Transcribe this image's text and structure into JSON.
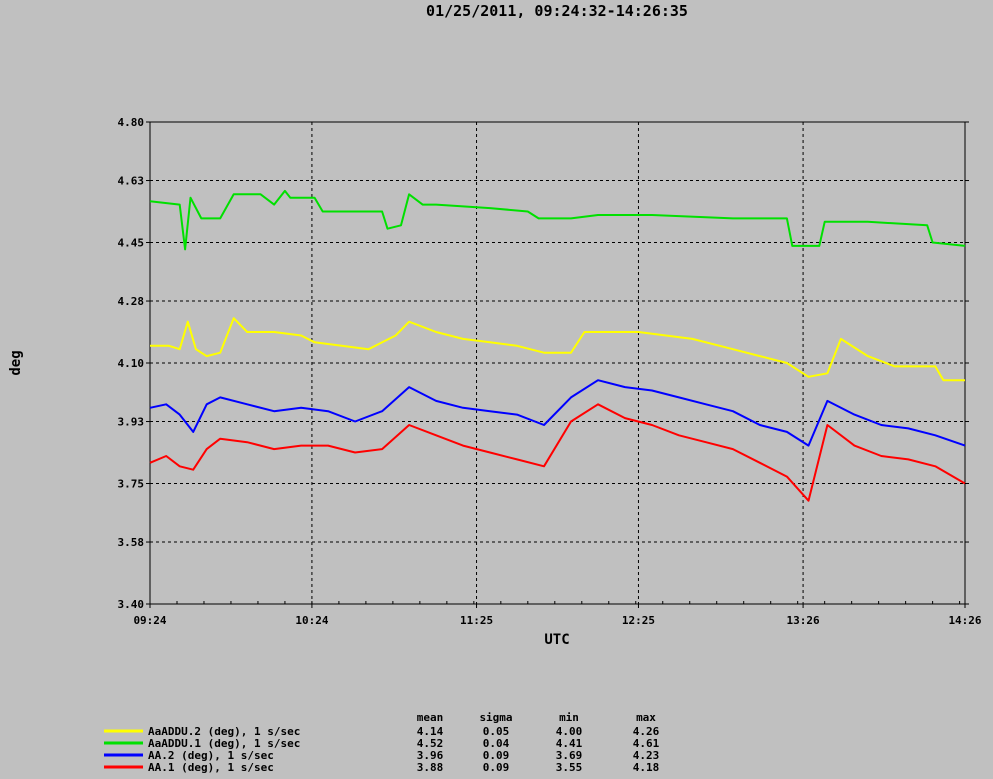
{
  "chart_data": {
    "type": "line",
    "title": "01/25/2011, 09:24:32-14:26:35",
    "xlabel": "UTC",
    "ylabel": "deg",
    "ylim": [
      3.4,
      4.8
    ],
    "yticks": [
      "3.40",
      "3.58",
      "3.75",
      "3.93",
      "4.10",
      "4.28",
      "4.45",
      "4.63",
      "4.80"
    ],
    "xlim": [
      "09:24",
      "14:26"
    ],
    "xticks": [
      "09:24",
      "10:24",
      "11:25",
      "12:25",
      "13:26",
      "14:26"
    ],
    "grid": true,
    "stats_headers": [
      "mean",
      "sigma",
      "min",
      "max"
    ],
    "series": [
      {
        "name": "AaADDU.2 (deg), 1 s/sec",
        "color": "#ffff00",
        "stats": [
          "4.14",
          "0.05",
          "4.00",
          "4.26"
        ],
        "points": [
          [
            "09:24",
            4.15
          ],
          [
            "09:31",
            4.15
          ],
          [
            "09:35",
            4.14
          ],
          [
            "09:38",
            4.22
          ],
          [
            "09:41",
            4.14
          ],
          [
            "09:45",
            4.12
          ],
          [
            "09:50",
            4.13
          ],
          [
            "09:55",
            4.23
          ],
          [
            "10:00",
            4.19
          ],
          [
            "10:10",
            4.19
          ],
          [
            "10:20",
            4.18
          ],
          [
            "10:25",
            4.16
          ],
          [
            "10:35",
            4.15
          ],
          [
            "10:45",
            4.14
          ],
          [
            "10:55",
            4.18
          ],
          [
            "11:00",
            4.22
          ],
          [
            "11:10",
            4.19
          ],
          [
            "11:20",
            4.17
          ],
          [
            "11:30",
            4.16
          ],
          [
            "11:40",
            4.15
          ],
          [
            "11:50",
            4.13
          ],
          [
            "12:00",
            4.13
          ],
          [
            "12:05",
            4.19
          ],
          [
            "12:25",
            4.19
          ],
          [
            "12:45",
            4.17
          ],
          [
            "13:00",
            4.14
          ],
          [
            "13:10",
            4.12
          ],
          [
            "13:20",
            4.1
          ],
          [
            "13:28",
            4.06
          ],
          [
            "13:35",
            4.07
          ],
          [
            "13:40",
            4.17
          ],
          [
            "13:50",
            4.12
          ],
          [
            "14:00",
            4.09
          ],
          [
            "14:15",
            4.09
          ],
          [
            "14:18",
            4.05
          ],
          [
            "14:26",
            4.05
          ]
        ]
      },
      {
        "name": "AaADDU.1 (deg), 1 s/sec",
        "color": "#00e000",
        "stats": [
          "4.52",
          "0.04",
          "4.41",
          "4.61"
        ],
        "points": [
          [
            "09:24",
            4.57
          ],
          [
            "09:35",
            4.56
          ],
          [
            "09:37",
            4.43
          ],
          [
            "09:39",
            4.58
          ],
          [
            "09:43",
            4.52
          ],
          [
            "09:50",
            4.52
          ],
          [
            "09:55",
            4.59
          ],
          [
            "10:05",
            4.59
          ],
          [
            "10:10",
            4.56
          ],
          [
            "10:14",
            4.6
          ],
          [
            "10:16",
            4.58
          ],
          [
            "10:25",
            4.58
          ],
          [
            "10:28",
            4.54
          ],
          [
            "10:50",
            4.54
          ],
          [
            "10:52",
            4.49
          ],
          [
            "10:57",
            4.5
          ],
          [
            "11:00",
            4.59
          ],
          [
            "11:05",
            4.56
          ],
          [
            "11:10",
            4.56
          ],
          [
            "11:30",
            4.55
          ],
          [
            "11:44",
            4.54
          ],
          [
            "11:48",
            4.52
          ],
          [
            "11:54",
            4.52
          ],
          [
            "12:00",
            4.52
          ],
          [
            "12:10",
            4.53
          ],
          [
            "12:30",
            4.53
          ],
          [
            "13:00",
            4.52
          ],
          [
            "13:20",
            4.52
          ],
          [
            "13:22",
            4.44
          ],
          [
            "13:32",
            4.44
          ],
          [
            "13:34",
            4.51
          ],
          [
            "13:50",
            4.51
          ],
          [
            "14:12",
            4.5
          ],
          [
            "14:14",
            4.45
          ],
          [
            "14:26",
            4.44
          ]
        ]
      },
      {
        "name": "AA.2 (deg), 1 s/sec",
        "color": "#0000ff",
        "stats": [
          "3.96",
          "0.09",
          "3.69",
          "4.23"
        ],
        "points": [
          [
            "09:24",
            3.97
          ],
          [
            "09:30",
            3.98
          ],
          [
            "09:35",
            3.95
          ],
          [
            "09:40",
            3.9
          ],
          [
            "09:45",
            3.98
          ],
          [
            "09:50",
            4.0
          ],
          [
            "10:00",
            3.98
          ],
          [
            "10:10",
            3.96
          ],
          [
            "10:20",
            3.97
          ],
          [
            "10:30",
            3.96
          ],
          [
            "10:40",
            3.93
          ],
          [
            "10:50",
            3.96
          ],
          [
            "11:00",
            4.03
          ],
          [
            "11:10",
            3.99
          ],
          [
            "11:20",
            3.97
          ],
          [
            "11:30",
            3.96
          ],
          [
            "11:40",
            3.95
          ],
          [
            "11:50",
            3.92
          ],
          [
            "12:00",
            4.0
          ],
          [
            "12:10",
            4.05
          ],
          [
            "12:20",
            4.03
          ],
          [
            "12:30",
            4.02
          ],
          [
            "12:40",
            4.0
          ],
          [
            "12:50",
            3.98
          ],
          [
            "13:00",
            3.96
          ],
          [
            "13:10",
            3.92
          ],
          [
            "13:20",
            3.9
          ],
          [
            "13:28",
            3.86
          ],
          [
            "13:35",
            3.99
          ],
          [
            "13:45",
            3.95
          ],
          [
            "13:55",
            3.92
          ],
          [
            "14:05",
            3.91
          ],
          [
            "14:15",
            3.89
          ],
          [
            "14:26",
            3.86
          ]
        ]
      },
      {
        "name": "AA.1 (deg), 1 s/sec",
        "color": "#ff0000",
        "stats": [
          "3.88",
          "0.09",
          "3.55",
          "4.18"
        ],
        "points": [
          [
            "09:24",
            3.81
          ],
          [
            "09:30",
            3.83
          ],
          [
            "09:35",
            3.8
          ],
          [
            "09:40",
            3.79
          ],
          [
            "09:45",
            3.85
          ],
          [
            "09:50",
            3.88
          ],
          [
            "10:00",
            3.87
          ],
          [
            "10:10",
            3.85
          ],
          [
            "10:20",
            3.86
          ],
          [
            "10:30",
            3.86
          ],
          [
            "10:40",
            3.84
          ],
          [
            "10:50",
            3.85
          ],
          [
            "11:00",
            3.92
          ],
          [
            "11:10",
            3.89
          ],
          [
            "11:20",
            3.86
          ],
          [
            "11:30",
            3.84
          ],
          [
            "11:40",
            3.82
          ],
          [
            "11:50",
            3.8
          ],
          [
            "12:00",
            3.93
          ],
          [
            "12:10",
            3.98
          ],
          [
            "12:20",
            3.94
          ],
          [
            "12:30",
            3.92
          ],
          [
            "12:40",
            3.89
          ],
          [
            "12:50",
            3.87
          ],
          [
            "13:00",
            3.85
          ],
          [
            "13:10",
            3.81
          ],
          [
            "13:20",
            3.77
          ],
          [
            "13:28",
            3.7
          ],
          [
            "13:35",
            3.92
          ],
          [
            "13:45",
            3.86
          ],
          [
            "13:55",
            3.83
          ],
          [
            "14:05",
            3.82
          ],
          [
            "14:15",
            3.8
          ],
          [
            "14:26",
            3.75
          ]
        ]
      }
    ]
  }
}
